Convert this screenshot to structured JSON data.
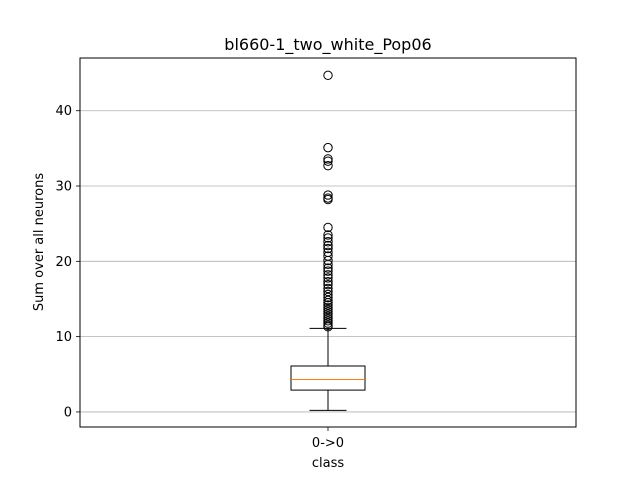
{
  "chart_data": {
    "type": "box",
    "title": "bl660-1_two_white_Pop06",
    "xlabel": "class",
    "ylabel": "Sum over all neurons",
    "categories": [
      "0->0"
    ],
    "ylim": [
      -2.0,
      47.0
    ],
    "yticks": [
      0,
      10,
      20,
      30,
      40
    ],
    "grid": "y",
    "boxes": [
      {
        "category": "0->0",
        "whisker_low": 0.2,
        "q1": 2.9,
        "median": 4.3,
        "q3": 6.1,
        "whisker_high": 11.1,
        "outliers": [
          44.7,
          35.1,
          33.6,
          33.3,
          32.7,
          28.8,
          28.4,
          28.2,
          24.5,
          23.5,
          23.1,
          22.6,
          22.1,
          21.7,
          21.2,
          20.7,
          20.1,
          19.6,
          19.1,
          18.7,
          18.2,
          17.8,
          17.3,
          16.9,
          16.4,
          16.0,
          15.6,
          15.2,
          14.8,
          14.5,
          14.2,
          13.9,
          13.6,
          13.3,
          13.0,
          12.7,
          12.4,
          12.1,
          11.8,
          11.5,
          11.3
        ]
      }
    ],
    "colors": {
      "box": "#000000",
      "median": "#ff7f0e",
      "grid": "#b0b0b0"
    }
  }
}
